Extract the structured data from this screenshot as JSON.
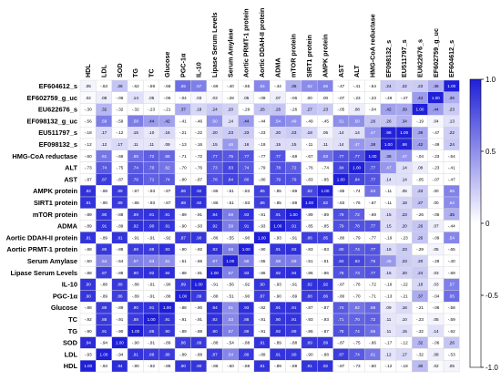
{
  "chart_data": {
    "type": "heatmap",
    "title": "",
    "columns": [
      "HDL",
      "LDL",
      "SOD",
      "TG",
      "TC",
      "Glucose",
      "PGC-1α",
      "IL-10",
      "Lipase Serum Levels",
      "Serum Amylase",
      "Aortic PRMT-1 protein",
      "Aortic DDAH-II protein",
      "ADMA",
      "mTOR protein",
      "SIRT1 protein",
      "AMPK protein",
      "AST",
      "ALT",
      "HMG-CoA reductase",
      "EF098132_s",
      "EU511797_s",
      "EU622676_s",
      "EF602759_g_uc",
      "EF604612_s"
    ],
    "rows": [
      "EF604612_s",
      "EF602759_g_uc",
      "EU622676_s",
      "EF098132_g_uc",
      "EU511797_s",
      "EF098132_s",
      "HMG-CoA reductase",
      "ALT",
      "AST",
      "AMPK protein",
      "SIRT1 protein",
      "mTOR protein",
      "ADMA",
      "Aortic DDAH-II protein",
      "Aortic PRMT-1 protein",
      "Serum Amylase",
      "Lipase Serum Levels",
      "IL-10",
      "PGC-1α",
      "Glucose",
      "TC",
      "TG",
      "SOD",
      "LDL",
      "HDL"
    ],
    "values": [
      [
        0.05,
        -0.53,
        0.26,
        -0.62,
        -0.59,
        -0.58,
        0.65,
        0.57,
        -0.69,
        -0.4,
        -0.65,
        0.54,
        -0.44,
        0.35,
        0.52,
        0.56,
        -0.47,
        -0.41,
        -0.54,
        0.24,
        0.22,
        0.23,
        0.36,
        1.0
      ],
      [
        0.02,
        0.08,
        -0.06,
        0.14,
        0.05,
        -0.06,
        -0.04,
        0.03,
        0.03,
        -0.28,
        0.05,
        -0.09,
        0.07,
        -0.06,
        0.0,
        0.0,
        -0.07,
        -0.23,
        -0.23,
        -0.49,
        -0.47,
        0.44,
        1.0,
        0.36
      ],
      [
        -0.3,
        0.32,
        -0.32,
        -0.32,
        -0.23,
        -0.21,
        0.37,
        0.18,
        0.24,
        0.2,
        -0.29,
        0.26,
        0.26,
        -0.26,
        0.27,
        0.23,
        -0.05,
        0.08,
        -0.04,
        0.42,
        0.39,
        1.0,
        0.44,
        0.23
      ],
      [
        -0.56,
        0.58,
        -0.59,
        0.58,
        0.44,
        0.42,
        -0.41,
        -0.46,
        0.5,
        0.14,
        0.44,
        -0.44,
        0.54,
        0.49,
        -0.49,
        -0.45,
        0.51,
        0.5,
        0.26,
        0.26,
        0.34,
        -0.19,
        0.04,
        0.13
      ],
      [
        -0.18,
        0.17,
        -0.12,
        0.15,
        0.1,
        0.16,
        -0.21,
        -0.22,
        0.2,
        0.23,
        0.23,
        -0.23,
        0.2,
        0.23,
        0.18,
        0.05,
        0.14,
        0.14,
        0.47,
        0.98,
        1.0,
        0.39,
        -0.47,
        0.22
      ],
      [
        -0.12,
        0.12,
        0.17,
        0.11,
        0.11,
        0.09,
        -0.13,
        -0.16,
        0.15,
        0.46,
        0.16,
        -0.19,
        0.15,
        0.15,
        -0.11,
        0.11,
        0.14,
        0.47,
        0.38,
        1.0,
        0.98,
        0.42,
        -0.49,
        0.24
      ],
      [
        -0.6,
        0.61,
        -0.66,
        0.65,
        0.72,
        0.68,
        -0.71,
        -0.72,
        0.77,
        0.75,
        0.77,
        -0.77,
        0.77,
        -0.69,
        -0.67,
        0.63,
        0.77,
        0.77,
        1.0,
        0.38,
        0.47,
        -0.04,
        -0.23,
        -0.54
      ],
      [
        -0.73,
        0.74,
        -0.75,
        0.74,
        0.7,
        0.62,
        -0.7,
        -0.76,
        0.73,
        0.83,
        0.74,
        -0.79,
        0.78,
        0.72,
        -0.76,
        -0.74,
        0.84,
        1.0,
        0.77,
        0.47,
        0.14,
        0.08,
        -0.23,
        -0.41
      ],
      [
        -0.87,
        0.87,
        -0.87,
        0.78,
        0.71,
        0.74,
        -0.8,
        -0.87,
        0.78,
        0.84,
        0.8,
        -0.8,
        0.79,
        0.79,
        -0.83,
        -0.85,
        1.0,
        0.84,
        0.77,
        0.14,
        0.14,
        -0.05,
        -0.07,
        -0.47
      ],
      [
        0.92,
        -0.88,
        0.89,
        -0.87,
        -0.93,
        -0.87,
        0.86,
        0.92,
        -0.86,
        -0.51,
        -0.83,
        0.85,
        -0.85,
        -0.89,
        0.82,
        1.0,
        -0.85,
        -0.74,
        0.63,
        -0.11,
        0.05,
        0.23,
        0.0,
        0.56
      ],
      [
        0.91,
        -0.9,
        0.89,
        -0.86,
        -0.93,
        -0.87,
        0.88,
        0.92,
        -0.86,
        -0.51,
        -0.83,
        0.86,
        -0.85,
        -0.89,
        1.0,
        0.82,
        -0.83,
        -0.76,
        -0.67,
        -0.11,
        0.18,
        0.27,
        0.0,
        0.52
      ],
      [
        -0.89,
        0.9,
        -0.88,
        0.89,
        0.91,
        0.91,
        -0.89,
        -0.91,
        0.94,
        0.59,
        0.93,
        -0.91,
        0.91,
        1.0,
        -0.89,
        -0.89,
        0.79,
        0.72,
        -0.69,
        0.15,
        0.23,
        -0.26,
        -0.06,
        0.35
      ],
      [
        -0.89,
        0.91,
        -0.89,
        0.92,
        0.9,
        0.91,
        -0.9,
        -0.93,
        0.92,
        0.58,
        0.91,
        -0.93,
        1.0,
        0.91,
        -0.85,
        -0.85,
        0.79,
        0.78,
        0.77,
        0.15,
        0.2,
        0.26,
        0.07,
        -0.44
      ],
      [
        0.91,
        -0.89,
        0.91,
        -0.91,
        -0.91,
        -0.92,
        0.87,
        0.9,
        -0.86,
        -0.55,
        -0.9,
        1.0,
        -0.93,
        -0.91,
        0.86,
        0.85,
        -0.8,
        -0.79,
        -0.77,
        -0.19,
        -0.23,
        0.26,
        -0.09,
        0.54
      ],
      [
        -0.88,
        0.89,
        -0.88,
        0.88,
        0.88,
        0.93,
        -0.9,
        -0.92,
        0.93,
        0.58,
        1.0,
        -0.9,
        0.91,
        0.93,
        -0.83,
        -0.83,
        0.8,
        0.74,
        0.77,
        0.16,
        0.23,
        -0.29,
        0.05,
        -0.65
      ],
      [
        -0.5,
        0.54,
        -0.54,
        0.57,
        0.53,
        0.51,
        -0.51,
        -0.56,
        0.57,
        1.0,
        0.58,
        -0.55,
        0.58,
        0.59,
        -0.51,
        -0.51,
        0.84,
        0.83,
        0.75,
        0.46,
        0.23,
        0.2,
        -0.28,
        -0.4
      ],
      [
        -0.88,
        0.87,
        -0.88,
        0.9,
        0.92,
        0.94,
        -0.88,
        -0.91,
        1.0,
        0.57,
        0.93,
        -0.86,
        0.92,
        0.94,
        -0.86,
        -0.86,
        0.78,
        0.73,
        0.77,
        0.15,
        0.2,
        0.24,
        0.03,
        -0.69
      ],
      [
        0.9,
        -0.88,
        0.89,
        -0.88,
        -0.91,
        -0.9,
        0.89,
        1.0,
        -0.91,
        -0.56,
        -0.92,
        0.9,
        -0.93,
        -0.91,
        0.92,
        0.92,
        -0.87,
        -0.76,
        -0.72,
        -0.16,
        -0.22,
        0.18,
        0.03,
        0.57
      ],
      [
        0.9,
        -0.89,
        0.86,
        -0.89,
        -0.91,
        -0.88,
        1.0,
        0.89,
        -0.88,
        -0.51,
        -0.9,
        0.87,
        -0.9,
        -0.89,
        0.88,
        0.86,
        -0.8,
        -0.7,
        -0.71,
        -0.13,
        -0.21,
        0.37,
        -0.04,
        0.65
      ],
      [
        -0.88,
        0.88,
        -0.89,
        0.9,
        0.91,
        1.0,
        -0.88,
        -0.9,
        0.94,
        0.51,
        0.93,
        -0.92,
        0.91,
        0.91,
        -0.87,
        -0.87,
        0.74,
        0.62,
        0.68,
        0.09,
        0.16,
        -0.21,
        -0.06,
        -0.58
      ],
      [
        -0.92,
        0.88,
        -0.91,
        0.88,
        1.0,
        0.91,
        -0.91,
        -0.91,
        0.92,
        0.53,
        0.88,
        -0.91,
        0.9,
        0.91,
        -0.93,
        -0.93,
        0.71,
        0.7,
        0.72,
        0.11,
        0.1,
        -0.23,
        0.05,
        -0.59
      ],
      [
        -0.9,
        0.91,
        -0.9,
        1.0,
        0.88,
        0.9,
        -0.89,
        -0.88,
        0.9,
        0.57,
        0.88,
        -0.91,
        0.92,
        0.89,
        -0.86,
        -0.87,
        0.78,
        0.74,
        0.65,
        0.11,
        0.15,
        -0.32,
        0.14,
        -0.62
      ],
      [
        0.94,
        -0.94,
        1.0,
        -0.9,
        -0.91,
        -0.89,
        0.86,
        0.89,
        -0.88,
        -0.54,
        -0.88,
        0.91,
        -0.89,
        -0.88,
        0.89,
        0.89,
        -0.87,
        -0.75,
        -0.66,
        -0.17,
        -0.12,
        0.32,
        -0.06,
        0.26
      ],
      [
        -0.93,
        1.0,
        -0.94,
        0.91,
        0.88,
        0.88,
        -0.89,
        -0.88,
        0.87,
        0.54,
        0.89,
        -0.89,
        0.91,
        0.9,
        -0.9,
        -0.88,
        0.87,
        0.74,
        0.61,
        0.12,
        0.17,
        -0.32,
        0.08,
        -0.53
      ],
      [
        1.0,
        -0.93,
        0.94,
        -0.9,
        -0.92,
        -0.88,
        0.9,
        0.9,
        -0.88,
        -0.5,
        -0.88,
        0.91,
        -0.89,
        -0.89,
        0.91,
        0.92,
        -0.87,
        -0.73,
        -0.6,
        -0.12,
        -0.18,
        0.3,
        0.02,
        0.05
      ]
    ],
    "colorbar": {
      "range": [
        -1.0,
        1.0
      ],
      "ticks": [
        "1.0",
        "0.5",
        "0",
        "-0.5",
        "-1.0"
      ],
      "position": "right"
    },
    "colors": {
      "positive": "#1f1fd8",
      "neutral": "#ffffff",
      "negative": "#ffffff"
    }
  }
}
